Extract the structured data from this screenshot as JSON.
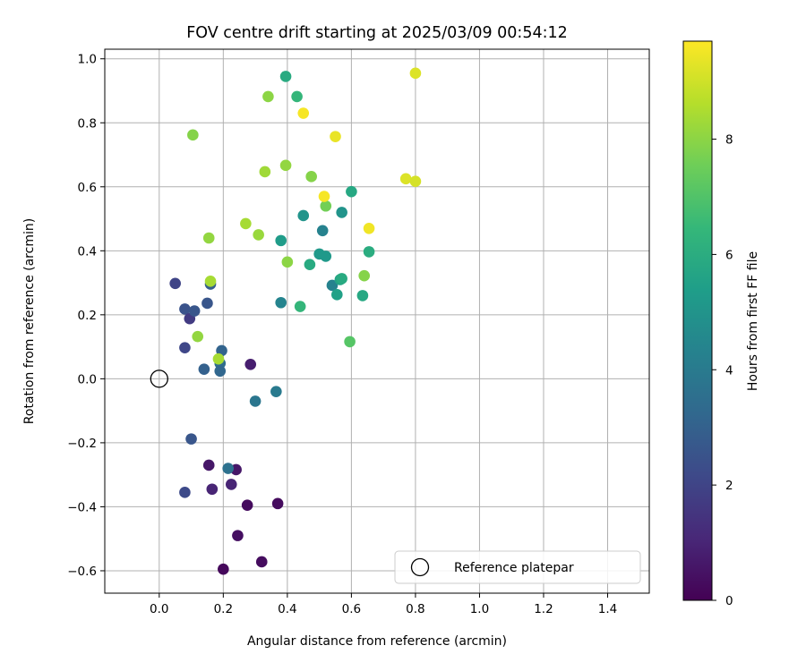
{
  "chart_data": {
    "type": "scatter",
    "title": "FOV centre drift starting at 2025/03/09 00:54:12",
    "xlabel": "Angular distance from reference (arcmin)",
    "ylabel": "Rotation from reference (arcmin)",
    "xlim": [
      -0.17,
      1.53
    ],
    "ylim": [
      -0.67,
      1.03
    ],
    "xticks": [
      0.0,
      0.2,
      0.4,
      0.6,
      0.8,
      1.0,
      1.2,
      1.4
    ],
    "xtick_labels": [
      "0.0",
      "0.2",
      "0.4",
      "0.6",
      "0.8",
      "1.0",
      "1.2",
      "1.4"
    ],
    "yticks": [
      -0.6,
      -0.4,
      -0.2,
      0.0,
      0.2,
      0.4,
      0.6,
      0.8,
      1.0
    ],
    "ytick_labels": [
      "−0.6",
      "−0.4",
      "−0.2",
      "0.0",
      "0.2",
      "0.4",
      "0.6",
      "0.8",
      "1.0"
    ],
    "grid": true,
    "colormap": "viridis",
    "colorbar": {
      "label": "Hours from first FF file",
      "range": [
        0,
        9.7
      ],
      "ticks": [
        0,
        2,
        4,
        6,
        8
      ],
      "tick_labels": [
        "0",
        "2",
        "4",
        "6",
        "8"
      ]
    },
    "legend": {
      "position": "lower-right",
      "entries": [
        {
          "label": "Reference platepar",
          "marker": "open-circle"
        }
      ]
    },
    "reference_point": {
      "x": 0.0,
      "y": 0.0
    },
    "points": [
      {
        "x": 0.2,
        "y": -0.595,
        "t": 0.2
      },
      {
        "x": 0.32,
        "y": -0.572,
        "t": 0.3
      },
      {
        "x": 0.245,
        "y": -0.49,
        "t": 0.4
      },
      {
        "x": 0.275,
        "y": -0.395,
        "t": 0.3
      },
      {
        "x": 0.37,
        "y": -0.39,
        "t": 0.3
      },
      {
        "x": 0.165,
        "y": -0.345,
        "t": 1.0
      },
      {
        "x": 0.225,
        "y": -0.33,
        "t": 1.0
      },
      {
        "x": 0.155,
        "y": -0.27,
        "t": 0.6
      },
      {
        "x": 0.24,
        "y": -0.284,
        "t": 0.6
      },
      {
        "x": 0.285,
        "y": 0.045,
        "t": 0.8
      },
      {
        "x": 0.08,
        "y": -0.355,
        "t": 2.2
      },
      {
        "x": 0.215,
        "y": -0.28,
        "t": 3.6
      },
      {
        "x": 0.1,
        "y": -0.188,
        "t": 2.6
      },
      {
        "x": 0.05,
        "y": 0.298,
        "t": 2.0
      },
      {
        "x": 0.08,
        "y": 0.218,
        "t": 2.5
      },
      {
        "x": 0.095,
        "y": 0.188,
        "t": 1.7
      },
      {
        "x": 0.11,
        "y": 0.212,
        "t": 2.6
      },
      {
        "x": 0.15,
        "y": 0.236,
        "t": 2.6
      },
      {
        "x": 0.16,
        "y": 0.296,
        "t": 2.9
      },
      {
        "x": 0.08,
        "y": 0.097,
        "t": 2.1
      },
      {
        "x": 0.14,
        "y": 0.03,
        "t": 3.0
      },
      {
        "x": 0.195,
        "y": 0.088,
        "t": 3.1
      },
      {
        "x": 0.19,
        "y": 0.048,
        "t": 3.4
      },
      {
        "x": 0.19,
        "y": 0.024,
        "t": 3.2
      },
      {
        "x": 0.3,
        "y": -0.07,
        "t": 3.8
      },
      {
        "x": 0.365,
        "y": -0.04,
        "t": 4.0
      },
      {
        "x": 0.38,
        "y": 0.238,
        "t": 4.4
      },
      {
        "x": 0.38,
        "y": 0.432,
        "t": 5.3
      },
      {
        "x": 0.45,
        "y": 0.51,
        "t": 5.0
      },
      {
        "x": 0.5,
        "y": 0.39,
        "t": 5.2
      },
      {
        "x": 0.51,
        "y": 0.463,
        "t": 4.3
      },
      {
        "x": 0.52,
        "y": 0.383,
        "t": 5.2
      },
      {
        "x": 0.54,
        "y": 0.292,
        "t": 4.3
      },
      {
        "x": 0.555,
        "y": 0.263,
        "t": 5.5
      },
      {
        "x": 0.57,
        "y": 0.52,
        "t": 5.0
      },
      {
        "x": 0.565,
        "y": 0.31,
        "t": 5.6
      },
      {
        "x": 0.57,
        "y": 0.313,
        "t": 5.9
      },
      {
        "x": 0.6,
        "y": 0.585,
        "t": 5.8
      },
      {
        "x": 0.635,
        "y": 0.26,
        "t": 5.8
      },
      {
        "x": 0.655,
        "y": 0.397,
        "t": 6.0
      },
      {
        "x": 0.47,
        "y": 0.357,
        "t": 5.9
      },
      {
        "x": 0.44,
        "y": 0.226,
        "t": 6.4
      },
      {
        "x": 0.595,
        "y": 0.116,
        "t": 7.1
      },
      {
        "x": 0.52,
        "y": 0.54,
        "t": 7.6
      },
      {
        "x": 0.395,
        "y": 0.945,
        "t": 5.9
      },
      {
        "x": 0.43,
        "y": 0.882,
        "t": 6.4
      },
      {
        "x": 0.34,
        "y": 0.882,
        "t": 8.0
      },
      {
        "x": 0.33,
        "y": 0.647,
        "t": 8.3
      },
      {
        "x": 0.395,
        "y": 0.667,
        "t": 8.1
      },
      {
        "x": 0.475,
        "y": 0.632,
        "t": 7.9
      },
      {
        "x": 0.105,
        "y": 0.762,
        "t": 7.9
      },
      {
        "x": 0.155,
        "y": 0.44,
        "t": 8.1
      },
      {
        "x": 0.27,
        "y": 0.485,
        "t": 8.4
      },
      {
        "x": 0.31,
        "y": 0.45,
        "t": 8.2
      },
      {
        "x": 0.4,
        "y": 0.365,
        "t": 8.0
      },
      {
        "x": 0.16,
        "y": 0.305,
        "t": 8.4
      },
      {
        "x": 0.12,
        "y": 0.132,
        "t": 8.1
      },
      {
        "x": 0.185,
        "y": 0.062,
        "t": 8.4
      },
      {
        "x": 0.64,
        "y": 0.322,
        "t": 7.9
      },
      {
        "x": 0.45,
        "y": 0.83,
        "t": 9.6
      },
      {
        "x": 0.55,
        "y": 0.757,
        "t": 9.4
      },
      {
        "x": 0.515,
        "y": 0.57,
        "t": 9.6
      },
      {
        "x": 0.655,
        "y": 0.47,
        "t": 9.5
      },
      {
        "x": 0.77,
        "y": 0.625,
        "t": 9.2
      },
      {
        "x": 0.8,
        "y": 0.617,
        "t": 9.1
      },
      {
        "x": 0.8,
        "y": 0.955,
        "t": 9.2
      }
    ]
  }
}
